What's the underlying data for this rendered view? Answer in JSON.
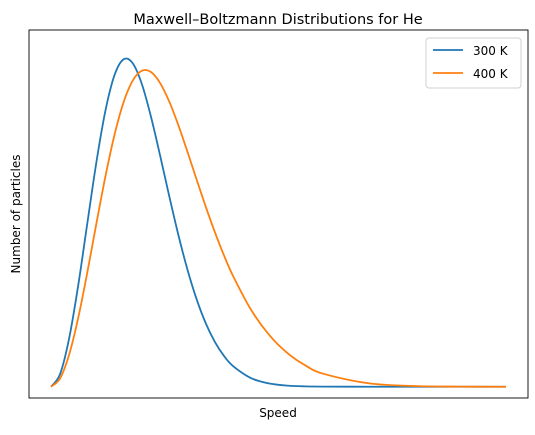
{
  "chart_data": {
    "type": "line",
    "title": "Maxwell–Boltzmann Distributions for He",
    "xlabel": "Speed",
    "ylabel": "Number of particles",
    "x_ticks_visible": false,
    "y_ticks_visible": false,
    "xlim": [
      0,
      5000
    ],
    "ylim": [
      -3e-05,
      0.00095
    ],
    "grid": false,
    "legend_position": "top-right",
    "series": [
      {
        "name": "300 K",
        "color": "#1f77b4",
        "x": [
          0,
          100,
          200,
          300,
          400,
          500,
          600,
          700,
          800,
          900,
          1000,
          1100,
          1200,
          1300,
          1400,
          1500,
          1600,
          1700,
          1800,
          1900,
          2000,
          2200,
          2400,
          2600,
          2800,
          3000,
          3500,
          4000,
          4500,
          5000
        ],
        "y": [
          0,
          3.39e-05,
          0.0001296,
          0.0002714,
          0.0004367,
          0.0005999,
          0.0007374,
          0.0008313,
          0.0008723,
          0.0008607,
          0.0008048,
          0.0007177,
          0.0006146,
          0.0005068,
          0.0004038,
          0.0003115,
          0.0002331,
          0.0001694,
          0.0001197,
          8.24e-05,
          5.52e-05,
          2.28e-05,
          8.6e-06,
          2.9e-06,
          9e-07,
          3e-07,
          0,
          0,
          0,
          0
        ]
      },
      {
        "name": "400 K",
        "color": "#ff7f0e",
        "x": [
          0,
          100,
          200,
          300,
          400,
          500,
          600,
          700,
          800,
          900,
          1000,
          1100,
          1200,
          1300,
          1400,
          1500,
          1600,
          1700,
          1800,
          1900,
          2000,
          2200,
          2400,
          2600,
          2800,
          3000,
          3500,
          4000,
          4500,
          5000
        ],
        "y": [
          0,
          2.22e-05,
          8.61e-05,
          0.0001845,
          0.0003057,
          0.0004361,
          0.0005624,
          0.0006731,
          0.0007594,
          0.0008161,
          0.0008417,
          0.0008378,
          0.0008084,
          0.0007591,
          0.0006961,
          0.0006253,
          0.0005519,
          0.0004799,
          0.0004123,
          0.0003504,
          0.0002953,
          0.0002043,
          0.0001373,
          8.92e-05,
          5.6e-05,
          3.41e-05,
          8.9e-06,
          1.9e-06,
          3e-07,
          0
        ]
      }
    ]
  }
}
